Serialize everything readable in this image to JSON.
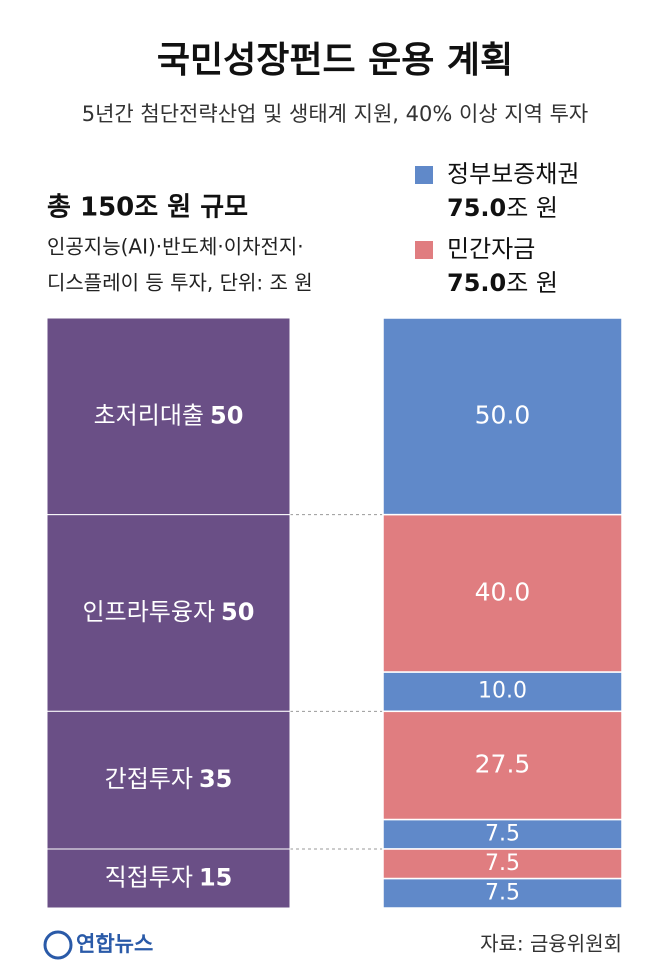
{
  "chart_data": {
    "type": "stacked_bar",
    "title": "국민성장펀드 운용 계획",
    "subtitle": "5년간 첨단전략산업 및 생태계 지원, 40% 이상 지역 투자",
    "total_heading": "총 150조 원 규모",
    "notes": [
      "인공지능(AI)·반도체·이차전지·",
      "디스플레이 등 투자, 단위: 조 원"
    ],
    "categories": [
      "초저리대출",
      "인프라투융자",
      "간접투자",
      "직접투자"
    ],
    "totals": [
      50,
      50,
      35,
      15
    ],
    "total_color": "#6a4f86",
    "series": [
      {
        "name": "정부보증채권",
        "color": "#6089c9",
        "total_value_label": "75.0",
        "total_unit": "조 원",
        "values": [
          50,
          10,
          7.5,
          7.5
        ],
        "value_labels": [
          "50.0",
          "10.0",
          "7.5",
          "7.5"
        ]
      },
      {
        "name": "민간자금",
        "color": "#e07d80",
        "total_value_label": "75.0",
        "total_unit": "조 원",
        "values": [
          null,
          40,
          27.5,
          7.5
        ],
        "value_labels": [
          null,
          "40.0",
          "27.5",
          "7.5"
        ]
      }
    ],
    "ylim": [
      0,
      150
    ],
    "source": "자료: 금융위원회",
    "logo": "연합뉴스"
  }
}
